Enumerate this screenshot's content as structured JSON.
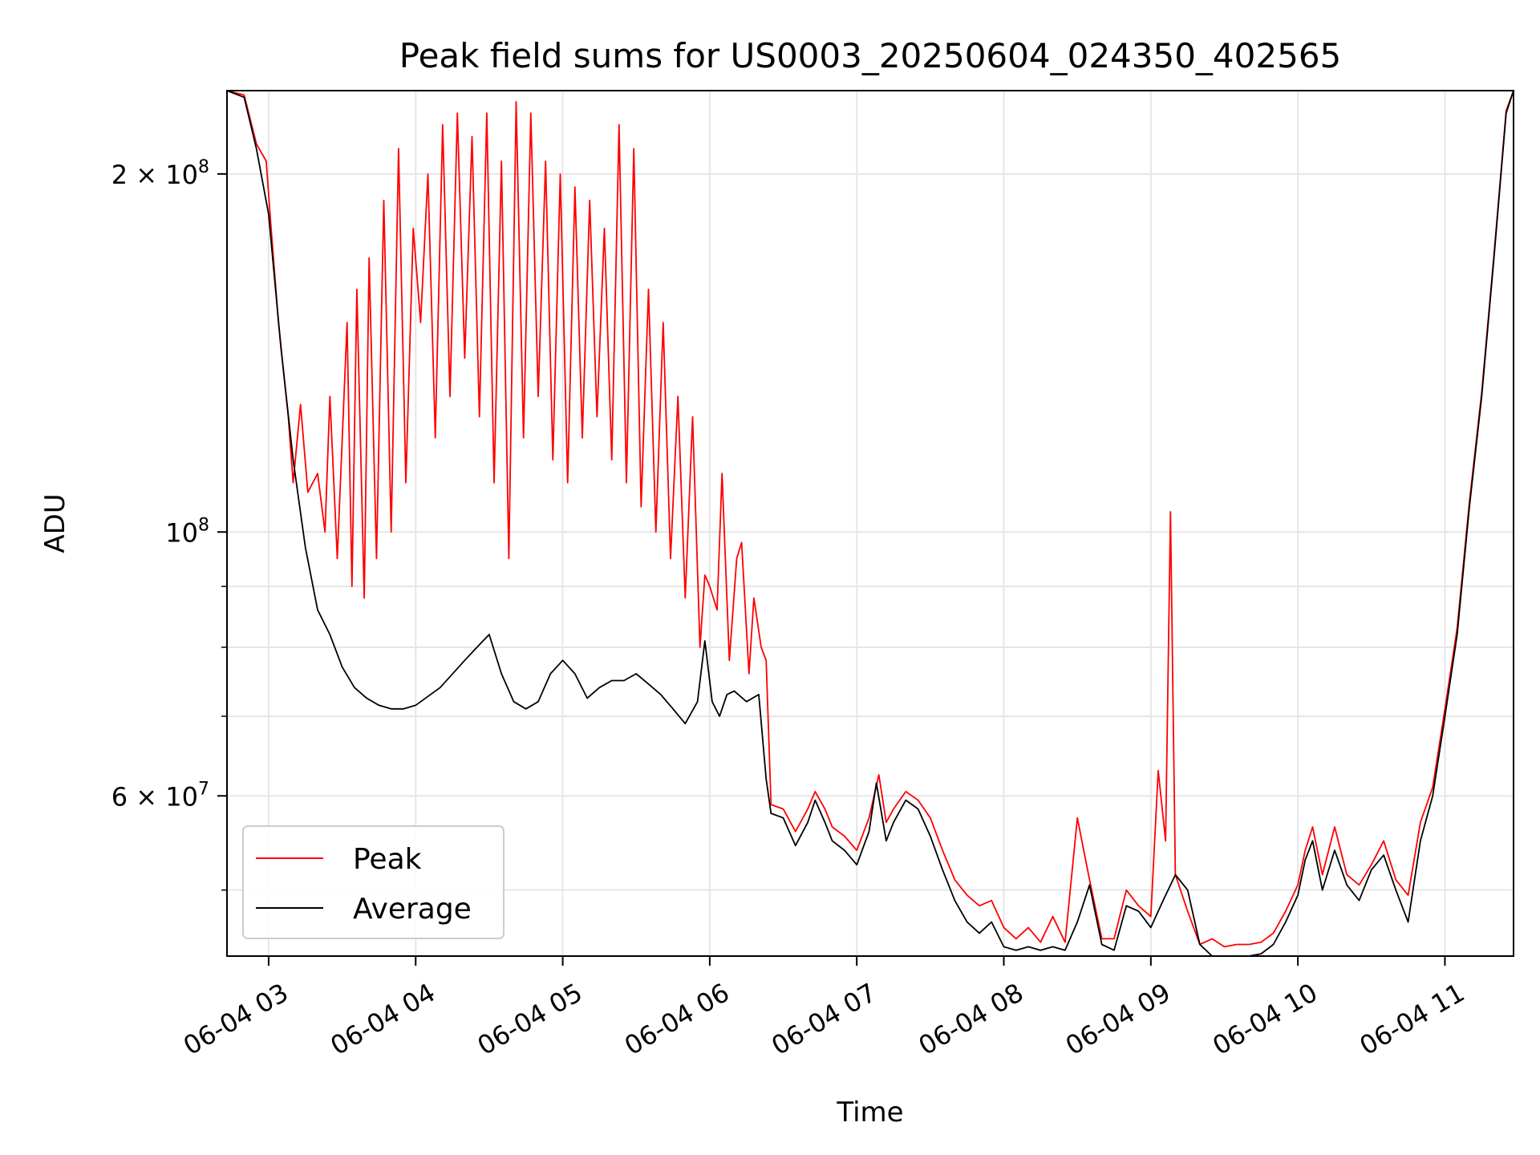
{
  "chart_data": {
    "type": "line",
    "title": "Peak field sums for US0003_20250604_024350_402565",
    "xlabel": "Time",
    "ylabel": "ADU",
    "yscale": "log",
    "xlim": [
      "2025-06-04 02:43",
      "2025-06-04 11:28"
    ],
    "ylim": [
      44000000,
      235000000
    ],
    "grid": true,
    "legend": {
      "position": "lower-left",
      "entries": [
        "Peak",
        "Average"
      ]
    },
    "x_ticks": [
      {
        "t": "2025-06-04 03:00",
        "label": "06-04 03"
      },
      {
        "t": "2025-06-04 04:00",
        "label": "06-04 04"
      },
      {
        "t": "2025-06-04 05:00",
        "label": "06-04 05"
      },
      {
        "t": "2025-06-04 06:00",
        "label": "06-04 06"
      },
      {
        "t": "2025-06-04 07:00",
        "label": "06-04 07"
      },
      {
        "t": "2025-06-04 08:00",
        "label": "06-04 08"
      },
      {
        "t": "2025-06-04 09:00",
        "label": "06-04 09"
      },
      {
        "t": "2025-06-04 10:00",
        "label": "06-04 10"
      },
      {
        "t": "2025-06-04 11:00",
        "label": "06-04 11"
      }
    ],
    "y_ticks": [
      {
        "v": 60000000,
        "mant": "6",
        "exp": "7"
      },
      {
        "v": 100000000,
        "mant": "",
        "exp": "8"
      },
      {
        "v": 200000000,
        "mant": "2",
        "exp": "8"
      }
    ],
    "y_minor_ticks": [
      50000000,
      70000000,
      80000000,
      90000000
    ],
    "series": [
      {
        "name": "Average",
        "color": "#000000",
        "x": [
          "2025-06-04 02:43",
          "2025-06-04 02:50",
          "2025-06-04 02:55",
          "2025-06-04 03:00",
          "2025-06-04 03:05",
          "2025-06-04 03:10",
          "2025-06-04 03:15",
          "2025-06-04 03:20",
          "2025-06-04 03:25",
          "2025-06-04 03:30",
          "2025-06-04 03:35",
          "2025-06-04 03:40",
          "2025-06-04 03:45",
          "2025-06-04 03:50",
          "2025-06-04 03:55",
          "2025-06-04 04:00",
          "2025-06-04 04:10",
          "2025-06-04 04:20",
          "2025-06-04 04:25",
          "2025-06-04 04:30",
          "2025-06-04 04:35",
          "2025-06-04 04:40",
          "2025-06-04 04:45",
          "2025-06-04 04:50",
          "2025-06-04 04:55",
          "2025-06-04 05:00",
          "2025-06-04 05:05",
          "2025-06-04 05:10",
          "2025-06-04 05:15",
          "2025-06-04 05:20",
          "2025-06-04 05:25",
          "2025-06-04 05:30",
          "2025-06-04 05:35",
          "2025-06-04 05:40",
          "2025-06-04 05:45",
          "2025-06-04 05:50",
          "2025-06-04 05:55",
          "2025-06-04 05:58",
          "2025-06-04 06:01",
          "2025-06-04 06:04",
          "2025-06-04 06:07",
          "2025-06-04 06:10",
          "2025-06-04 06:15",
          "2025-06-04 06:20",
          "2025-06-04 06:23",
          "2025-06-04 06:25",
          "2025-06-04 06:30",
          "2025-06-04 06:35",
          "2025-06-04 06:40",
          "2025-06-04 06:43",
          "2025-06-04 06:47",
          "2025-06-04 06:50",
          "2025-06-04 06:55",
          "2025-06-04 07:00",
          "2025-06-04 07:05",
          "2025-06-04 07:08",
          "2025-06-04 07:12",
          "2025-06-04 07:15",
          "2025-06-04 07:20",
          "2025-06-04 07:25",
          "2025-06-04 07:30",
          "2025-06-04 07:35",
          "2025-06-04 07:40",
          "2025-06-04 07:45",
          "2025-06-04 07:50",
          "2025-06-04 07:55",
          "2025-06-04 08:00",
          "2025-06-04 08:05",
          "2025-06-04 08:10",
          "2025-06-04 08:15",
          "2025-06-04 08:20",
          "2025-06-04 08:25",
          "2025-06-04 08:30",
          "2025-06-04 08:35",
          "2025-06-04 08:40",
          "2025-06-04 08:45",
          "2025-06-04 08:50",
          "2025-06-04 08:55",
          "2025-06-04 09:00",
          "2025-06-04 09:05",
          "2025-06-04 09:10",
          "2025-06-04 09:15",
          "2025-06-04 09:20",
          "2025-06-04 09:25",
          "2025-06-04 09:30",
          "2025-06-04 09:35",
          "2025-06-04 09:40",
          "2025-06-04 09:45",
          "2025-06-04 09:50",
          "2025-06-04 09:55",
          "2025-06-04 10:00",
          "2025-06-04 10:03",
          "2025-06-04 10:06",
          "2025-06-04 10:10",
          "2025-06-04 10:15",
          "2025-06-04 10:20",
          "2025-06-04 10:25",
          "2025-06-04 10:30",
          "2025-06-04 10:35",
          "2025-06-04 10:40",
          "2025-06-04 10:45",
          "2025-06-04 10:50",
          "2025-06-04 10:55",
          "2025-06-04 11:00",
          "2025-06-04 11:05",
          "2025-06-04 11:10",
          "2025-06-04 11:15",
          "2025-06-04 11:20",
          "2025-06-04 11:25",
          "2025-06-04 11:28"
        ],
        "values": [
          235000000,
          232000000,
          210000000,
          185000000,
          143000000,
          115000000,
          97000000,
          86000000,
          82000000,
          77000000,
          74000000,
          72500000,
          71500000,
          71000000,
          71000000,
          71500000,
          74000000,
          78000000,
          80000000,
          82000000,
          76000000,
          72000000,
          71000000,
          72000000,
          76000000,
          78000000,
          76000000,
          72500000,
          74000000,
          75000000,
          75000000,
          76000000,
          74500000,
          73000000,
          71000000,
          69000000,
          72000000,
          81000000,
          72000000,
          70000000,
          73000000,
          73500000,
          72000000,
          73000000,
          62000000,
          58000000,
          57500000,
          54500000,
          57000000,
          59500000,
          57000000,
          55000000,
          54000000,
          52500000,
          56000000,
          61500000,
          55000000,
          57000000,
          59500000,
          58500000,
          55500000,
          52000000,
          49000000,
          47000000,
          46000000,
          47000000,
          44800000,
          44500000,
          44800000,
          44500000,
          44800000,
          44500000,
          47000000,
          50500000,
          45000000,
          44500000,
          48500000,
          48000000,
          46500000,
          49000000,
          51500000,
          50000000,
          45000000,
          44000000,
          44000000,
          44000000,
          44000000,
          44200000,
          45000000,
          47000000,
          49500000,
          53000000,
          55000000,
          50000000,
          54000000,
          50500000,
          49000000,
          52000000,
          53500000,
          50000000,
          47000000,
          55000000,
          60000000,
          70000000,
          82000000,
          105000000,
          130000000,
          170000000,
          225000000,
          235000000
        ]
      },
      {
        "name": "Peak",
        "color": "#ff0000",
        "x": [
          "2025-06-04 02:43",
          "2025-06-04 02:50",
          "2025-06-04 02:55",
          "2025-06-04 02:59",
          "2025-06-04 03:01",
          "2025-06-04 03:04",
          "2025-06-04 03:08",
          "2025-06-04 03:10",
          "2025-06-04 03:13",
          "2025-06-04 03:16",
          "2025-06-04 03:20",
          "2025-06-04 03:23",
          "2025-06-04 03:25",
          "2025-06-04 03:28",
          "2025-06-04 03:32",
          "2025-06-04 03:34",
          "2025-06-04 03:36",
          "2025-06-04 03:39",
          "2025-06-04 03:41",
          "2025-06-04 03:44",
          "2025-06-04 03:47",
          "2025-06-04 03:50",
          "2025-06-04 03:53",
          "2025-06-04 03:56",
          "2025-06-04 03:59",
          "2025-06-04 04:02",
          "2025-06-04 04:05",
          "2025-06-04 04:08",
          "2025-06-04 04:11",
          "2025-06-04 04:14",
          "2025-06-04 04:17",
          "2025-06-04 04:20",
          "2025-06-04 04:23",
          "2025-06-04 04:26",
          "2025-06-04 04:29",
          "2025-06-04 04:32",
          "2025-06-04 04:35",
          "2025-06-04 04:38",
          "2025-06-04 04:41",
          "2025-06-04 04:44",
          "2025-06-04 04:47",
          "2025-06-04 04:50",
          "2025-06-04 04:53",
          "2025-06-04 04:56",
          "2025-06-04 04:59",
          "2025-06-04 05:02",
          "2025-06-04 05:05",
          "2025-06-04 05:08",
          "2025-06-04 05:11",
          "2025-06-04 05:14",
          "2025-06-04 05:17",
          "2025-06-04 05:20",
          "2025-06-04 05:23",
          "2025-06-04 05:26",
          "2025-06-04 05:29",
          "2025-06-04 05:32",
          "2025-06-04 05:35",
          "2025-06-04 05:38",
          "2025-06-04 05:41",
          "2025-06-04 05:44",
          "2025-06-04 05:47",
          "2025-06-04 05:50",
          "2025-06-04 05:53",
          "2025-06-04 05:56",
          "2025-06-04 05:58",
          "2025-06-04 06:00",
          "2025-06-04 06:03",
          "2025-06-04 06:05",
          "2025-06-04 06:08",
          "2025-06-04 06:11",
          "2025-06-04 06:13",
          "2025-06-04 06:16",
          "2025-06-04 06:18",
          "2025-06-04 06:21",
          "2025-06-04 06:23",
          "2025-06-04 06:25",
          "2025-06-04 06:30",
          "2025-06-04 06:35",
          "2025-06-04 06:40",
          "2025-06-04 06:43",
          "2025-06-04 06:47",
          "2025-06-04 06:50",
          "2025-06-04 06:55",
          "2025-06-04 07:00",
          "2025-06-04 07:05",
          "2025-06-04 07:09",
          "2025-06-04 07:12",
          "2025-06-04 07:15",
          "2025-06-04 07:20",
          "2025-06-04 07:25",
          "2025-06-04 07:30",
          "2025-06-04 07:35",
          "2025-06-04 07:40",
          "2025-06-04 07:45",
          "2025-06-04 07:50",
          "2025-06-04 07:55",
          "2025-06-04 08:00",
          "2025-06-04 08:05",
          "2025-06-04 08:10",
          "2025-06-04 08:15",
          "2025-06-04 08:20",
          "2025-06-04 08:25",
          "2025-06-04 08:30",
          "2025-06-04 08:35",
          "2025-06-04 08:40",
          "2025-06-04 08:45",
          "2025-06-04 08:50",
          "2025-06-04 08:55",
          "2025-06-04 09:00",
          "2025-06-04 09:03",
          "2025-06-04 09:06",
          "2025-06-04 09:08",
          "2025-06-04 09:10",
          "2025-06-04 09:15",
          "2025-06-04 09:20",
          "2025-06-04 09:25",
          "2025-06-04 09:30",
          "2025-06-04 09:35",
          "2025-06-04 09:40",
          "2025-06-04 09:45",
          "2025-06-04 09:50",
          "2025-06-04 09:55",
          "2025-06-04 10:00",
          "2025-06-04 10:03",
          "2025-06-04 10:06",
          "2025-06-04 10:10",
          "2025-06-04 10:15",
          "2025-06-04 10:20",
          "2025-06-04 10:25",
          "2025-06-04 10:30",
          "2025-06-04 10:35",
          "2025-06-04 10:40",
          "2025-06-04 10:45",
          "2025-06-04 10:50",
          "2025-06-04 10:55",
          "2025-06-04 11:00",
          "2025-06-04 11:05",
          "2025-06-04 11:10",
          "2025-06-04 11:15",
          "2025-06-04 11:20",
          "2025-06-04 11:25",
          "2025-06-04 11:28"
        ],
        "values": [
          235000000,
          233000000,
          212000000,
          205000000,
          180000000,
          150000000,
          125000000,
          110000000,
          128000000,
          108000000,
          112000000,
          100000000,
          130000000,
          95000000,
          150000000,
          90000000,
          160000000,
          88000000,
          170000000,
          95000000,
          190000000,
          100000000,
          210000000,
          110000000,
          180000000,
          150000000,
          200000000,
          120000000,
          220000000,
          130000000,
          225000000,
          140000000,
          215000000,
          125000000,
          225000000,
          110000000,
          205000000,
          95000000,
          230000000,
          120000000,
          225000000,
          130000000,
          205000000,
          115000000,
          200000000,
          110000000,
          195000000,
          120000000,
          190000000,
          125000000,
          180000000,
          115000000,
          220000000,
          110000000,
          210000000,
          105000000,
          160000000,
          100000000,
          150000000,
          95000000,
          130000000,
          88000000,
          125000000,
          80000000,
          92000000,
          90000000,
          86000000,
          112000000,
          78000000,
          95000000,
          98000000,
          76000000,
          88000000,
          80000000,
          78000000,
          59000000,
          58500000,
          56000000,
          58500000,
          60500000,
          58500000,
          56500000,
          55500000,
          54000000,
          57500000,
          62500000,
          57000000,
          58500000,
          60500000,
          59500000,
          57500000,
          54000000,
          51000000,
          49500000,
          48500000,
          49000000,
          46500000,
          45500000,
          46500000,
          45200000,
          47500000,
          45200000,
          57500000,
          51000000,
          45500000,
          45500000,
          50000000,
          48500000,
          47500000,
          63000000,
          55000000,
          104000000,
          51500000,
          48000000,
          45000000,
          45500000,
          44800000,
          45000000,
          45000000,
          45200000,
          46000000,
          48000000,
          50500000,
          54000000,
          56500000,
          51500000,
          56500000,
          51500000,
          50500000,
          52500000,
          55000000,
          51000000,
          49500000,
          57000000,
          61000000,
          71000000,
          83000000,
          106000000,
          131000000,
          171000000,
          226000000,
          235000000
        ]
      }
    ]
  }
}
